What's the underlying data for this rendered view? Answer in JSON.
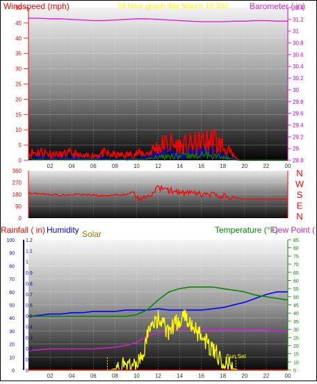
{
  "colors": {
    "windspeed": "#ff0000",
    "gust": "#ff0000",
    "wind_lull": "#0000ff",
    "wind_avg": "#008800",
    "barometer": "#e020e0",
    "direction": "#ff0000",
    "rainfall": "#ff0000",
    "humidity": "#0000ff",
    "solar": "#ffff00",
    "temperature": "#008800",
    "dew_point": "#cc22cc",
    "title": "#ffff00",
    "sunset": "#ffff00",
    "axis_rain": "#0000ff",
    "axis_left_ticks": "#ff0000",
    "axis_right_ticks": "#cc00cc",
    "axis_temp_ticks": "#008800"
  },
  "top_panel": {
    "title": "24 hour graph day   March 19 202",
    "left_label": "Windspeed (mph)",
    "right_label": "Barometer ( in)",
    "left_ticks": [
      "50",
      "45",
      "40",
      "35",
      "30",
      "25",
      "20",
      "15",
      "10",
      "5",
      "0"
    ],
    "right_ticks": [
      "31.4",
      "31.2",
      "31",
      "30.8",
      "30.6",
      "30.4",
      "30.2",
      "30",
      "29.8",
      "29.6",
      "29.4",
      "29.2",
      "29",
      "28.8"
    ],
    "x_ticks": [
      "02",
      "04",
      "06",
      "08",
      "10",
      "12",
      "14",
      "16",
      "18",
      "20",
      "22",
      "00"
    ]
  },
  "mid_panel": {
    "left_ticks": [
      "360",
      "270",
      "180",
      "90",
      "0"
    ],
    "compass": [
      "N",
      "W",
      "S",
      "E",
      "N"
    ]
  },
  "bottom_panel": {
    "rain_label": "Rainfall ( in)",
    "humidity_label": "Humidity",
    "solar_label": "Solar",
    "temp_label": "Temperature (°F)",
    "dew_label": "Dew Point (",
    "humidity_ticks": [
      "100",
      "90",
      "80",
      "70",
      "60",
      "50",
      "40",
      "30",
      "20",
      "10",
      "0"
    ],
    "rain_ticks": [
      "1.2",
      "1.1",
      "1",
      "0.9",
      "0.8",
      "0.7",
      "0.6",
      "0.5",
      "0.4",
      "0.3",
      "0.2",
      "0.1",
      "0"
    ],
    "temp_ticks": [
      "85",
      "80",
      "75",
      "70",
      "65",
      "60",
      "55",
      "50",
      "45",
      "40",
      "35",
      "30",
      "25",
      "20",
      "15",
      "10",
      "5"
    ],
    "x_ticks": [
      "02",
      "04",
      "06",
      "08",
      "10",
      "12",
      "14",
      "16",
      "18",
      "20",
      "22",
      "00"
    ],
    "sunset_label": "Sun Set"
  },
  "chart_data": [
    {
      "type": "line",
      "name": "wind-barometer",
      "title": "24 hour graph day   March 19 202",
      "x_unit": "hour",
      "xlim": [
        0,
        24
      ],
      "ylim_left": [
        0,
        50
      ],
      "ylim_right": [
        28.8,
        31.4
      ],
      "series": [
        {
          "name": "Windspeed (mph)",
          "axis": "left",
          "style": "spiky",
          "seed": 11,
          "x": [
            0,
            1,
            2,
            3,
            4,
            5,
            6,
            7,
            8,
            9,
            10,
            11,
            12,
            13,
            14,
            15,
            16,
            17,
            18,
            19,
            19.5,
            20,
            24
          ],
          "values": [
            2,
            2.5,
            2,
            1.5,
            2,
            1,
            1.5,
            2,
            1.5,
            1.5,
            2,
            2,
            4,
            5,
            4,
            4.5,
            5,
            6,
            4,
            1,
            0,
            0,
            0
          ]
        },
        {
          "name": "",
          "axis": "left",
          "style": "spiky",
          "seed": 23,
          "x": [
            0,
            1,
            2,
            3,
            4,
            5,
            6,
            7,
            8,
            9,
            10,
            11,
            12,
            13,
            14,
            15,
            16,
            17,
            18,
            19,
            19.5,
            20,
            24
          ],
          "values": [
            0.8,
            0.8,
            0.6,
            0.6,
            0.8,
            0.4,
            0.4,
            0.6,
            0.4,
            0.3,
            0.5,
            0.8,
            1.5,
            2,
            1.6,
            1.8,
            2,
            2.4,
            1.5,
            0.3,
            0,
            0,
            0
          ]
        },
        {
          "name": "",
          "axis": "left",
          "style": "spiky",
          "seed": 37,
          "x": [
            0,
            2,
            4,
            6,
            8,
            10,
            11,
            12,
            13,
            14,
            15,
            16,
            17,
            18,
            19,
            19.5,
            20,
            24
          ],
          "values": [
            0.3,
            0.2,
            0.3,
            0.2,
            0.1,
            0.2,
            0.4,
            1,
            1.4,
            1.2,
            1.3,
            1.5,
            1.8,
            1,
            0.2,
            0,
            0,
            0
          ]
        },
        {
          "name": "Barometer ( in)",
          "axis": "right",
          "style": "smooth",
          "x": [
            0,
            1,
            2,
            3,
            4,
            5,
            6,
            7,
            8,
            9,
            10,
            11,
            12,
            13,
            14,
            15,
            16,
            17,
            18,
            19,
            20,
            21,
            22,
            23,
            24
          ],
          "values": [
            31.22,
            31.22,
            31.21,
            31.21,
            31.2,
            31.19,
            31.18,
            31.18,
            31.19,
            31.2,
            31.21,
            31.21,
            31.2,
            31.19,
            31.18,
            31.17,
            31.16,
            31.16,
            31.16,
            31.17,
            31.17,
            31.18,
            31.18,
            31.17,
            31.17
          ]
        }
      ]
    },
    {
      "type": "line",
      "name": "wind-direction",
      "x_unit": "hour",
      "xlim": [
        0,
        24
      ],
      "ylim": [
        0,
        360
      ],
      "series": [
        {
          "name": "Direction",
          "style": "spiky",
          "seed": 53,
          "x": [
            0,
            1,
            2,
            3,
            4,
            5,
            6,
            7,
            8,
            9,
            9.8,
            10,
            11,
            11.5,
            12,
            13,
            14,
            15,
            16,
            17,
            17.5,
            18,
            19,
            19.5,
            20,
            24
          ],
          "values": [
            190,
            185,
            180,
            175,
            180,
            180,
            175,
            170,
            175,
            180,
            200,
            150,
            160,
            190,
            230,
            210,
            195,
            185,
            180,
            175,
            170,
            165,
            160,
            150,
            145,
            145
          ],
          "jitter": 25
        }
      ]
    },
    {
      "type": "line",
      "name": "humidity-solar-temperature",
      "x_unit": "hour",
      "xlim": [
        0,
        24
      ],
      "ylim_humidity": [
        0,
        100
      ],
      "ylim_rain": [
        0,
        1.2
      ],
      "ylim_temperature": [
        5,
        85
      ],
      "series": [
        {
          "name": "Humidity",
          "axis": "humidity",
          "style": "smooth",
          "x": [
            0,
            1,
            2,
            3,
            4,
            5,
            6,
            7,
            8,
            9,
            10,
            11,
            12,
            13,
            14,
            15,
            16,
            17,
            18,
            19,
            20,
            21,
            22,
            23,
            24
          ],
          "values": [
            41,
            42,
            43,
            43,
            44,
            44,
            45,
            45,
            45,
            46,
            46,
            46,
            47,
            46,
            46,
            46,
            46,
            47,
            48,
            50,
            52,
            55,
            58,
            60,
            60
          ]
        },
        {
          "name": "Temperature (°F)",
          "axis": "temperature",
          "style": "smooth",
          "x": [
            0,
            1,
            2,
            3,
            4,
            5,
            6,
            7,
            8,
            9,
            10,
            11,
            12,
            13,
            14,
            15,
            16,
            17,
            18,
            19,
            20,
            21,
            22,
            23,
            24
          ],
          "values": [
            38,
            38,
            38,
            38,
            38,
            38,
            38,
            38,
            38,
            38,
            39,
            42,
            48,
            53,
            55,
            56,
            56,
            56,
            55,
            54,
            53,
            51,
            50,
            49,
            48
          ]
        },
        {
          "name": "Dew Point (",
          "axis": "temperature",
          "style": "smooth",
          "x": [
            0,
            1,
            2,
            3,
            4,
            5,
            6,
            7,
            8,
            9,
            10,
            11,
            12,
            13,
            14,
            15,
            16,
            17,
            18,
            19,
            20,
            21,
            22,
            23,
            24
          ],
          "values": [
            17,
            17.5,
            18,
            18,
            18,
            18,
            18,
            18.5,
            19,
            20,
            22,
            26,
            28,
            29,
            30,
            31,
            30,
            30,
            30,
            30,
            30,
            29.5,
            29.5,
            29,
            29
          ]
        },
        {
          "name": "Solar",
          "axis": "humidity",
          "style": "spiky",
          "seed": 71,
          "x": [
            0,
            7,
            7.5,
            8,
            9,
            10,
            10.5,
            11,
            11.5,
            12,
            13,
            13.5,
            14,
            14.5,
            15,
            16,
            16.5,
            17,
            18,
            18.5,
            19,
            19.5,
            24
          ],
          "values": [
            0,
            0,
            0,
            1,
            3,
            5,
            8,
            25,
            35,
            40,
            28,
            35,
            38,
            40,
            36,
            25,
            22,
            15,
            8,
            3,
            1,
            0,
            0
          ],
          "jitter": 6
        },
        {
          "name": "Rainfall ( in)",
          "axis": "rain",
          "style": "smooth",
          "x": [
            0,
            24
          ],
          "values": [
            0,
            0
          ]
        }
      ],
      "annotations": [
        {
          "text": "Sun Set",
          "x": 19.2
        }
      ],
      "markers_hours": [
        7.3,
        19.2
      ]
    }
  ]
}
